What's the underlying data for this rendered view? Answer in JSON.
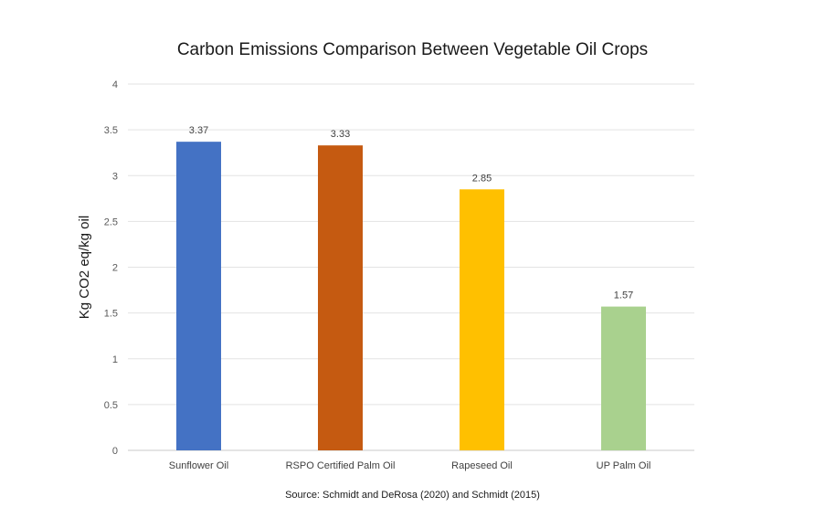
{
  "chart_data": {
    "type": "bar",
    "title": "Carbon Emissions Comparison Between Vegetable Oil Crops",
    "ylabel": "Kg CO2 eq/kg oil",
    "xlabel": "",
    "source": "Source: Schmidt and DeRosa (2020) and Schmidt (2015)",
    "categories": [
      "Sunflower Oil",
      "RSPO Certified Palm Oil",
      "Rapeseed Oil",
      "UP Palm Oil"
    ],
    "values": [
      3.37,
      3.33,
      2.85,
      1.57
    ],
    "value_labels": [
      "3.37",
      "3.33",
      "2.85",
      "1.57"
    ],
    "colors": [
      "#4472C4",
      "#C55A11",
      "#FFC000",
      "#A9D18E"
    ],
    "ylim": [
      0,
      4
    ],
    "yticks": [
      0,
      0.5,
      1,
      1.5,
      2,
      2.5,
      3,
      3.5,
      4
    ],
    "ytick_labels": [
      "0",
      "0.5",
      "1",
      "1.5",
      "2",
      "2.5",
      "3",
      "3.5",
      "4"
    ],
    "grid": true,
    "legend": "none"
  }
}
